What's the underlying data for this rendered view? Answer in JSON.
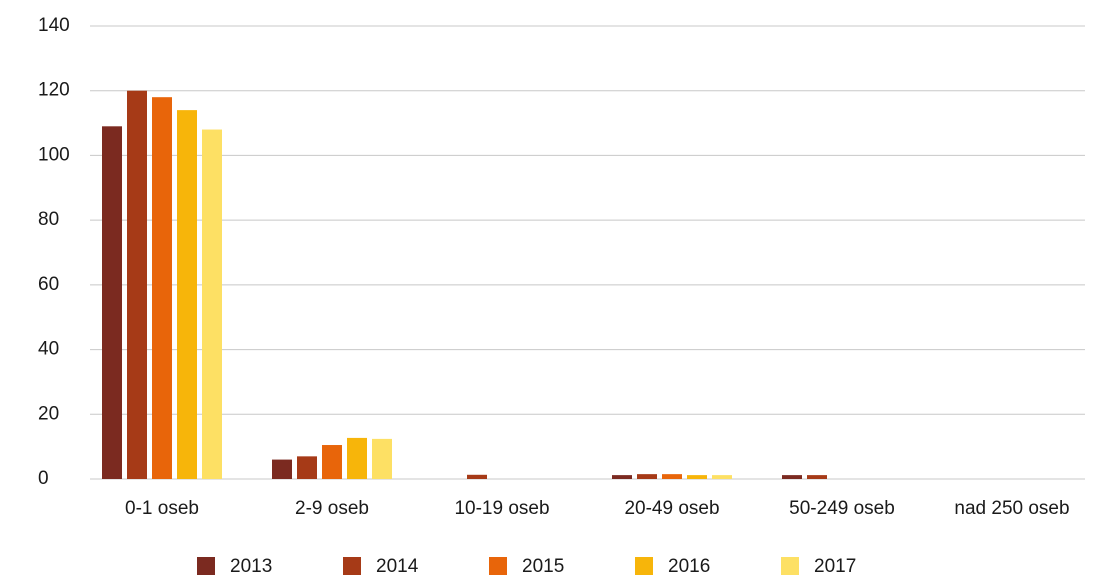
{
  "chart_data": {
    "type": "bar",
    "categories": [
      "0-1 oseb",
      "2-9 oseb",
      "10-19 oseb",
      "20-49 oseb",
      "50-249 oseb",
      "nad 250 oseb"
    ],
    "series": [
      {
        "name": "2013",
        "color": "#7b2a20",
        "values": [
          109,
          6,
          0,
          1.2,
          1.2,
          0
        ]
      },
      {
        "name": "2014",
        "color": "#a63a17",
        "values": [
          120,
          7,
          1.3,
          1.5,
          1.2,
          0
        ]
      },
      {
        "name": "2015",
        "color": "#e8650a",
        "values": [
          118,
          10.5,
          0,
          1.5,
          0,
          0
        ]
      },
      {
        "name": "2016",
        "color": "#f7b50a",
        "values": [
          114,
          12.7,
          0,
          1.2,
          0,
          0
        ]
      },
      {
        "name": "2017",
        "color": "#fde064",
        "values": [
          108,
          12.4,
          0,
          1.2,
          0,
          0
        ]
      }
    ],
    "ylim": [
      0,
      140
    ],
    "yticks": [
      0,
      20,
      40,
      60,
      80,
      100,
      120,
      140
    ],
    "grid": true,
    "legend": "bottom"
  }
}
